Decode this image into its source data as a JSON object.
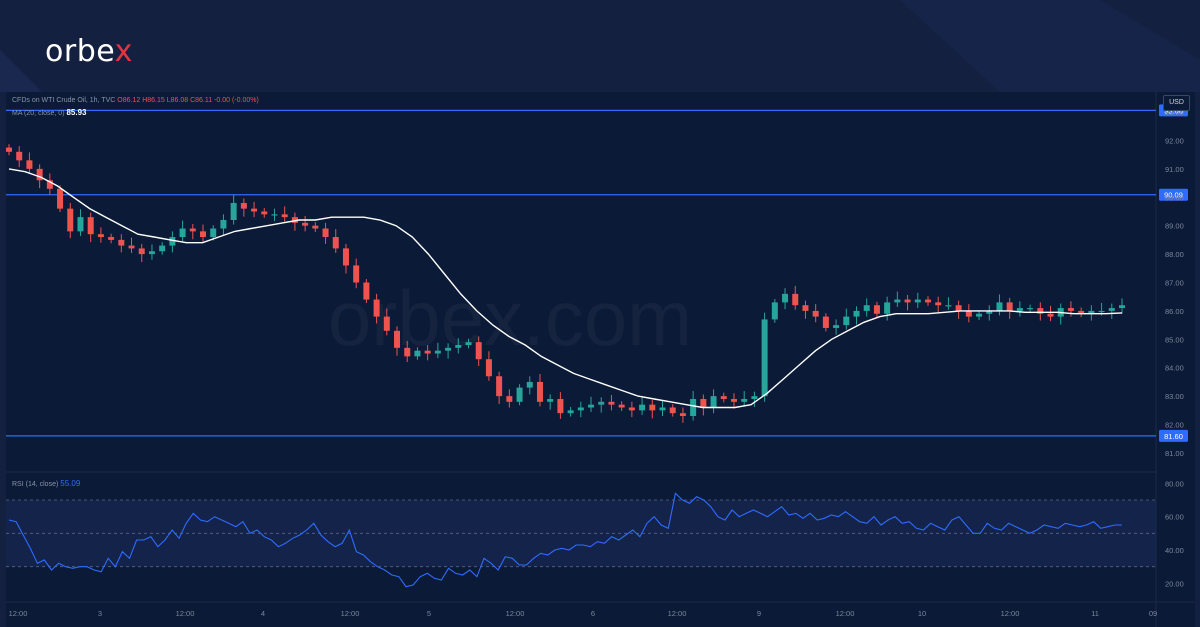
{
  "brand": {
    "name_prefix": "orbe",
    "name_x": "x",
    "watermark": "orbex.com"
  },
  "colors": {
    "background": "#142040",
    "plot": "#0b1a36",
    "up": "#26a69a",
    "down": "#ef5350",
    "ma": "#ffffff",
    "level": "#2f6bff",
    "rsi": "#2f6bff"
  },
  "legend": {
    "symbol": "CFDs on WTI Crude Oil, 1h, TVC",
    "ohlc": "O86.12 H86.15 L86.08 C86.11 -0.00 (-0.00%)",
    "ma_label": "MA (20, close, 0)",
    "ma_value": "85.93",
    "rsi_label": "RSI (14, close)",
    "rsi_value": "55.09",
    "currency": "USD"
  },
  "chart_data": [
    {
      "type": "candlestick",
      "title": "CFDs on WTI Crude Oil, 1h, TVC",
      "ylim": [
        80.4,
        93.6
      ],
      "y_ticks": [
        "93.00",
        "92.00",
        "91.00",
        "90.00",
        "89.00",
        "88.00",
        "87.00",
        "86.00",
        "85.00",
        "84.00",
        "83.00",
        "82.00",
        "81.00"
      ],
      "x_ticks": [
        "12:00",
        "3",
        "12:00",
        "4",
        "12:00",
        "5",
        "12:00",
        "6",
        "12:00",
        "9",
        "12:00",
        "10",
        "12:00",
        "11",
        "09"
      ],
      "levels": [
        {
          "label": "93.06",
          "value": 93.06
        },
        {
          "label": "90.09",
          "value": 90.09
        },
        {
          "label": "81.60",
          "value": 81.6
        }
      ],
      "close_path": [
        91.6,
        91.3,
        91.0,
        90.6,
        90.3,
        89.6,
        88.8,
        89.3,
        88.7,
        88.6,
        88.5,
        88.3,
        88.2,
        88.0,
        88.1,
        88.3,
        88.6,
        88.9,
        88.8,
        88.6,
        88.9,
        89.2,
        89.8,
        89.6,
        89.5,
        89.4,
        89.4,
        89.3,
        89.1,
        89.0,
        88.9,
        88.6,
        88.2,
        87.6,
        87.0,
        86.4,
        85.8,
        85.3,
        84.7,
        84.4,
        84.6,
        84.5,
        84.6,
        84.7,
        84.8,
        84.9,
        84.3,
        83.7,
        83.0,
        82.8,
        83.3,
        83.5,
        82.8,
        82.9,
        82.4,
        82.5,
        82.6,
        82.7,
        82.8,
        82.7,
        82.6,
        82.5,
        82.7,
        82.5,
        82.6,
        82.4,
        82.3,
        82.9,
        82.6,
        83.0,
        82.9,
        82.8,
        82.9,
        83.0,
        85.7,
        86.3,
        86.6,
        86.2,
        86.0,
        85.8,
        85.4,
        85.5,
        85.8,
        86.0,
        86.2,
        85.9,
        86.3,
        86.4,
        86.3,
        86.4,
        86.3,
        86.2,
        86.2,
        86.0,
        85.8,
        85.9,
        86.0,
        86.3,
        86.0,
        86.1,
        86.1,
        85.9,
        85.8,
        86.1,
        86.0,
        85.9,
        86.0,
        86.0,
        86.1,
        86.2
      ],
      "ma_path": [
        91.0,
        90.9,
        90.7,
        90.4,
        90.0,
        89.6,
        89.3,
        89.0,
        88.7,
        88.6,
        88.5,
        88.4,
        88.4,
        88.6,
        88.8,
        88.9,
        89.0,
        89.1,
        89.2,
        89.2,
        89.3,
        89.3,
        89.3,
        89.2,
        89.0,
        88.6,
        88.0,
        87.3,
        86.6,
        86.0,
        85.5,
        85.1,
        84.8,
        84.4,
        84.1,
        83.8,
        83.6,
        83.4,
        83.2,
        83.0,
        82.9,
        82.8,
        82.7,
        82.6,
        82.6,
        82.6,
        82.7,
        83.1,
        83.6,
        84.1,
        84.6,
        85.0,
        85.3,
        85.6,
        85.8,
        85.9,
        85.9,
        85.9,
        85.95,
        86.0,
        86.0,
        86.0,
        86.0,
        85.95,
        85.95,
        85.95,
        85.9,
        85.9,
        85.9,
        85.93
      ],
      "series": [
        {
          "name": "MA (20, close, 0)",
          "last": 85.93
        }
      ]
    },
    {
      "type": "line",
      "title": "RSI (14, close)",
      "ylim": [
        10,
        85
      ],
      "y_ticks": [
        "80.00",
        "60.00",
        "40.00",
        "20.00"
      ],
      "band": [
        30,
        70
      ],
      "mid": 50,
      "last": 55.09,
      "values": [
        58,
        57,
        49,
        41,
        32,
        34,
        28,
        32,
        30,
        29,
        30,
        30,
        28,
        27,
        35,
        30,
        39,
        35,
        46,
        46,
        48,
        42,
        46,
        52,
        47,
        56,
        62,
        58,
        57,
        60,
        58,
        56,
        54,
        57,
        50,
        52,
        48,
        46,
        42,
        44,
        47,
        49,
        52,
        56,
        49,
        45,
        42,
        44,
        52,
        39,
        37,
        33,
        30,
        28,
        25,
        24,
        18,
        19,
        24,
        26,
        23,
        22,
        29,
        26,
        25,
        28,
        24,
        35,
        32,
        28,
        36,
        35,
        31,
        31,
        35,
        38,
        37,
        40,
        41,
        40,
        43,
        43,
        42,
        45,
        44,
        48,
        46,
        49,
        52,
        48,
        56,
        60,
        55,
        53,
        74,
        70,
        68,
        72,
        70,
        66,
        60,
        58,
        64,
        60,
        62,
        64,
        62,
        60,
        63,
        66,
        61,
        62,
        59,
        62,
        58,
        59,
        61,
        60,
        63,
        60,
        57,
        56,
        60,
        55,
        58,
        60,
        56,
        57,
        53,
        52,
        56,
        54,
        52,
        58,
        60,
        55,
        50,
        50,
        56,
        53,
        52,
        56,
        54,
        52,
        50,
        52,
        55,
        54,
        53,
        56,
        55,
        54,
        55,
        57,
        53,
        54,
        55,
        55
      ]
    }
  ]
}
